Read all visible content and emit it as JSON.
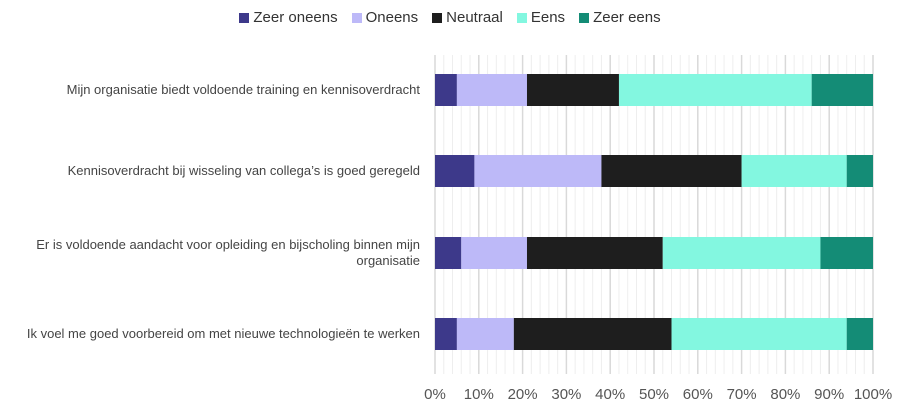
{
  "chart_data": {
    "type": "bar",
    "orientation": "horizontal-stacked-100",
    "categories": [
      "Mijn organisatie biedt voldoende training en kennisoverdracht",
      "Kennisoverdracht bij wisseling van collega’s is goed geregeld",
      "Er is voldoende aandacht voor opleiding en bijscholing binnen mijn organisatie",
      "Ik voel me goed voorbereid om met nieuwe technologieën te werken"
    ],
    "series": [
      {
        "name": "Zeer oneens",
        "color": "#3d398a",
        "values": [
          5,
          9,
          6,
          5
        ]
      },
      {
        "name": "Oneens",
        "color": "#bdb9f8",
        "values": [
          16,
          29,
          15,
          13
        ]
      },
      {
        "name": "Neutraal",
        "color": "#1e1e1e",
        "values": [
          21,
          32,
          31,
          36
        ]
      },
      {
        "name": "Eens",
        "color": "#83f7e0",
        "values": [
          44,
          24,
          36,
          40
        ]
      },
      {
        "name": "Zeer eens",
        "color": "#148c76",
        "values": [
          14,
          6,
          12,
          6
        ]
      }
    ],
    "xlim": [
      0,
      100
    ],
    "xticks": [
      "0%",
      "10%",
      "20%",
      "30%",
      "40%",
      "50%",
      "60%",
      "70%",
      "80%",
      "90%",
      "100%"
    ],
    "legend_position": "top-center",
    "grid": true
  }
}
